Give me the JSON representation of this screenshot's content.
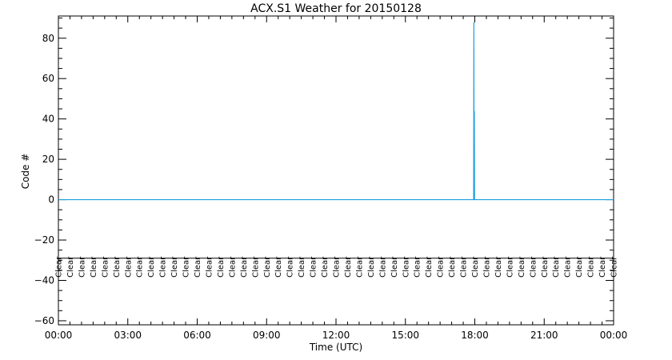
{
  "chart_data": {
    "type": "line",
    "title": "ACX.S1 Weather for 20150128",
    "xlabel": "Time (UTC)",
    "ylabel": "Code #",
    "xlim": [
      0,
      24
    ],
    "ylim": [
      -62,
      91
    ],
    "x_ticks": [
      {
        "value": 0,
        "label": "00:00"
      },
      {
        "value": 3,
        "label": "03:00"
      },
      {
        "value": 6,
        "label": "06:00"
      },
      {
        "value": 9,
        "label": "09:00"
      },
      {
        "value": 12,
        "label": "12:00"
      },
      {
        "value": 15,
        "label": "15:00"
      },
      {
        "value": 18,
        "label": "18:00"
      },
      {
        "value": 21,
        "label": "21:00"
      },
      {
        "value": 24,
        "label": "00:00"
      }
    ],
    "y_ticks": [
      {
        "value": -60,
        "label": "−60"
      },
      {
        "value": -40,
        "label": "−40"
      },
      {
        "value": -20,
        "label": "−20"
      },
      {
        "value": 0,
        "label": "0"
      },
      {
        "value": 20,
        "label": "20"
      },
      {
        "value": 40,
        "label": "40"
      },
      {
        "value": 60,
        "label": "60"
      },
      {
        "value": 80,
        "label": "80"
      }
    ],
    "grid": false,
    "series": [
      {
        "color": "#1f9fe0",
        "x": [
          0,
          17.95,
          17.96,
          17.97,
          17.98,
          17.99,
          24
        ],
        "y": [
          0,
          0,
          88,
          0,
          44,
          0,
          0
        ]
      }
    ],
    "reference_line": {
      "y": -29
    },
    "condition_label": "Clear",
    "condition_times": [
      0,
      0.5,
      1,
      1.5,
      2,
      2.5,
      3,
      3.5,
      4,
      4.5,
      5,
      5.5,
      6,
      6.5,
      7,
      7.5,
      8,
      8.5,
      9,
      9.5,
      10,
      10.5,
      11,
      11.5,
      12,
      12.5,
      13,
      13.5,
      14,
      14.5,
      15,
      15.5,
      16,
      16.5,
      17,
      17.5,
      18,
      18.5,
      19,
      19.5,
      20,
      20.5,
      21,
      21.5,
      22,
      22.5,
      23,
      23.5,
      24
    ]
  }
}
